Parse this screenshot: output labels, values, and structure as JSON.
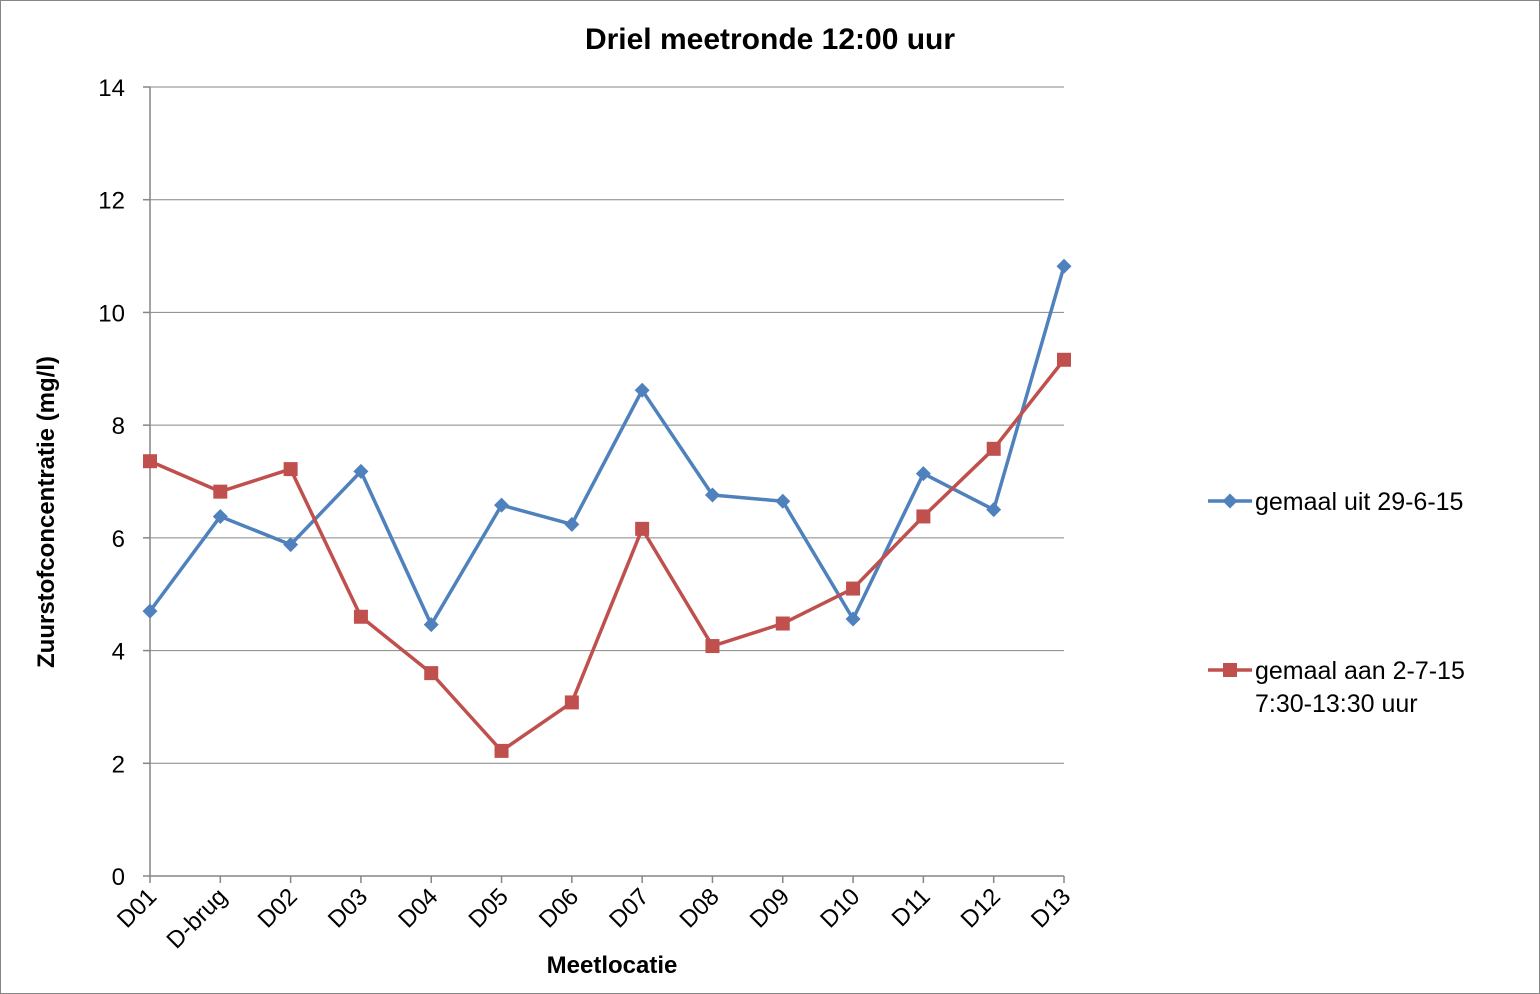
{
  "chart_data": {
    "type": "line",
    "title": "Driel meetronde 12:00 uur",
    "xlabel": "Meetlocatie",
    "ylabel": "Zuurstofconcentratie (mg/l)",
    "ylim": [
      0,
      14
    ],
    "yticks": [
      0,
      2,
      4,
      6,
      8,
      10,
      12,
      14
    ],
    "grid": true,
    "legend_position": "right",
    "categories": [
      "D01",
      "D-brug",
      "D02",
      "D03",
      "D04",
      "D05",
      "D06",
      "D07",
      "D08",
      "D09",
      "D10",
      "D11",
      "D12",
      "D13"
    ],
    "series": [
      {
        "name": "gemaal uit 29-6-15",
        "legend_lines": [
          "gemaal uit 29-6-15"
        ],
        "color": "#4F81BD",
        "marker": "diamond",
        "values": [
          4.7,
          6.38,
          5.88,
          7.18,
          4.46,
          6.58,
          6.24,
          8.62,
          6.76,
          6.65,
          4.56,
          7.14,
          6.5,
          10.82
        ]
      },
      {
        "name": "gemaal aan 2-7-15 7:30-13:30 uur",
        "legend_lines": [
          "gemaal aan 2-7-15",
          "7:30-13:30 uur"
        ],
        "color": "#C0504D",
        "marker": "square",
        "values": [
          7.36,
          6.82,
          7.22,
          4.6,
          3.6,
          2.22,
          3.08,
          6.16,
          4.08,
          4.48,
          5.1,
          6.38,
          7.58,
          9.16
        ]
      }
    ]
  }
}
